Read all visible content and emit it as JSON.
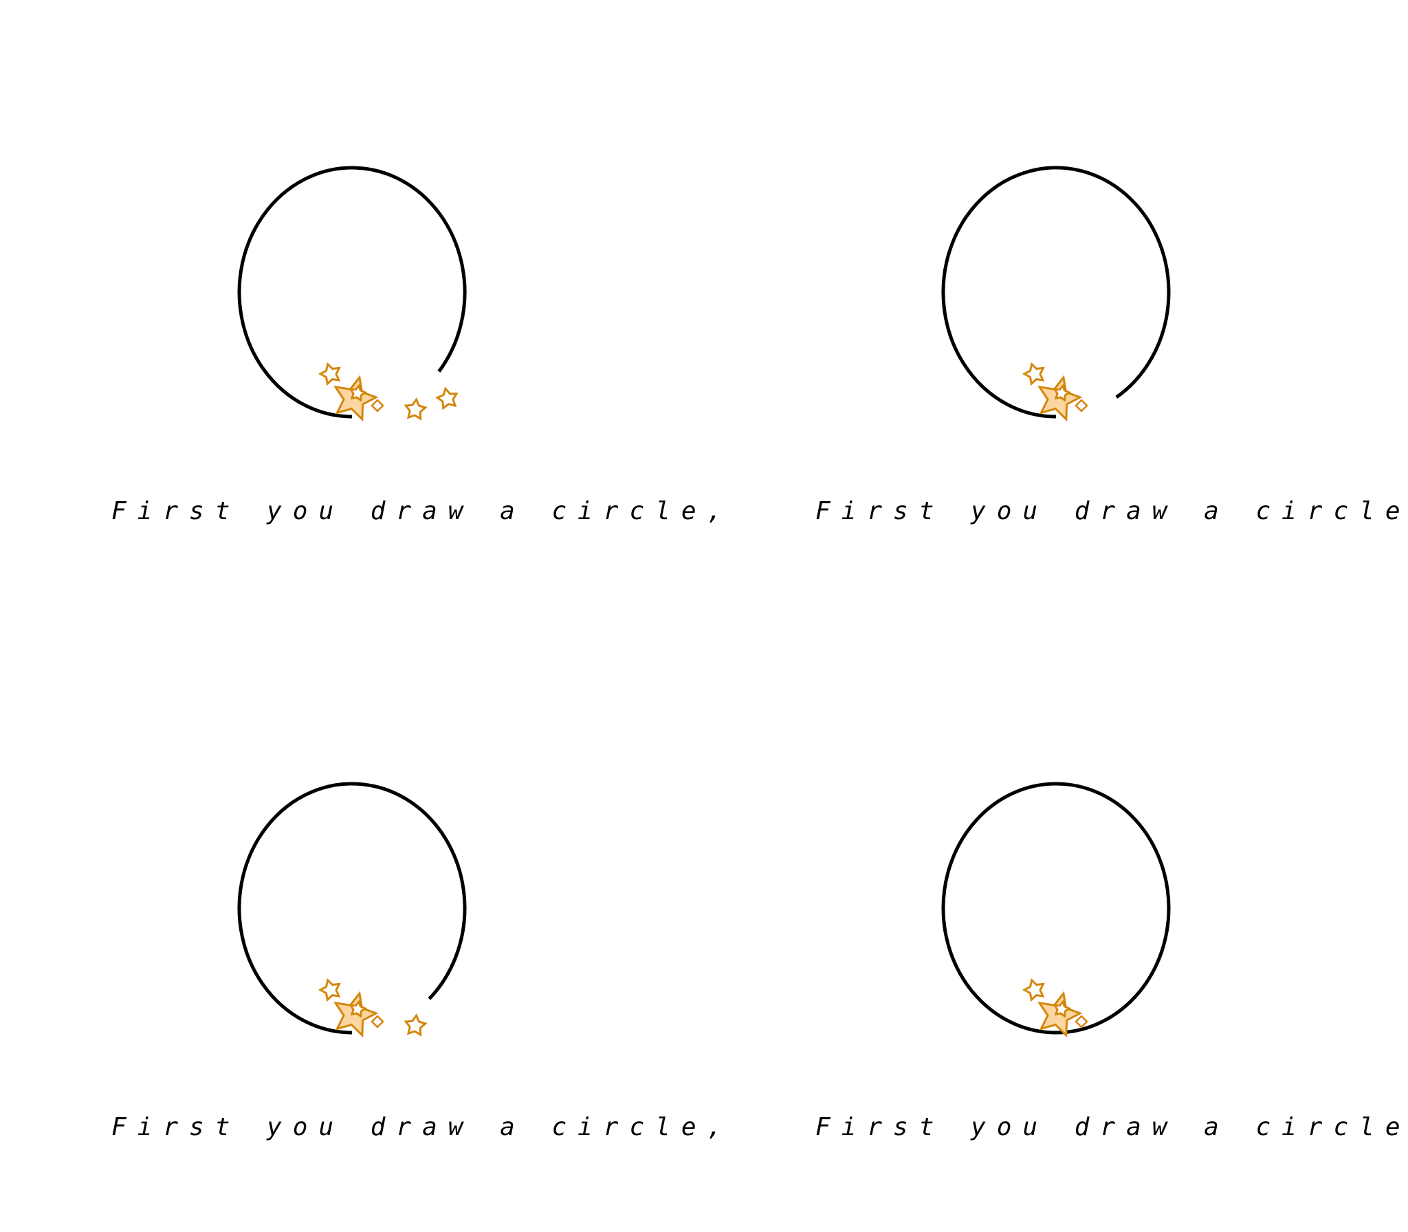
{
  "colors": {
    "ink": "#000000",
    "star_fill": "#FAD7A0",
    "star_outline": "#D4860B",
    "background": "#FFFFFF"
  },
  "panels": [
    {
      "caption": "First you draw a circle,",
      "progress": 0.86,
      "trail_stars": 2
    },
    {
      "caption": "First you draw a circle,",
      "progress": 0.91,
      "trail_stars": 0
    },
    {
      "caption": "First you draw a circle,",
      "progress": 0.88,
      "trail_stars": 1
    },
    {
      "caption": "First you draw a circle,",
      "progress": 1.0,
      "trail_stars": 0
    }
  ]
}
